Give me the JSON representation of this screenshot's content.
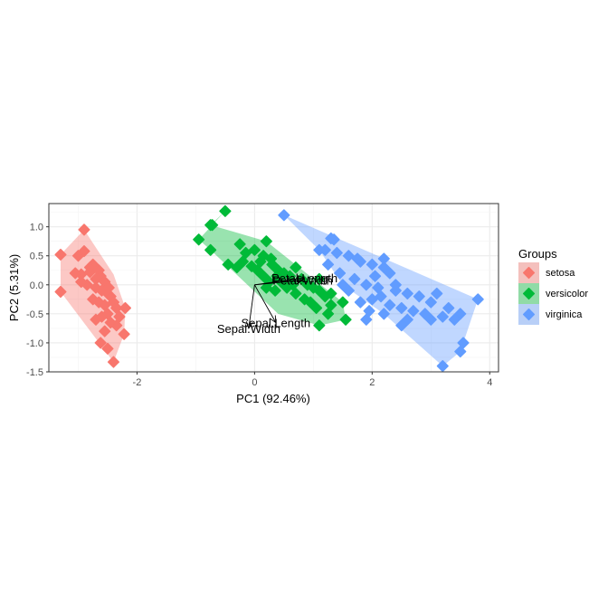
{
  "chart_data": {
    "type": "scatter",
    "title": "",
    "xlabel": "PC1 (92.46%)",
    "ylabel": "PC2 (5.31%)",
    "xlim": [
      -3.5,
      4.15
    ],
    "ylim": [
      -1.5,
      1.4
    ],
    "x_ticks": [
      -2,
      0,
      2,
      4
    ],
    "y_ticks": [
      -1.5,
      -1.0,
      -0.5,
      0.0,
      0.5,
      1.0
    ],
    "x_tick_labels": [
      "-2",
      "0",
      "2",
      "4"
    ],
    "y_tick_labels": [
      "-1.5",
      "-1.0",
      "-0.5",
      "0.0",
      "0.5",
      "1.0"
    ],
    "grid": true,
    "legend": {
      "title": "Groups",
      "position": "right",
      "entries": [
        "setosa",
        "versicolor",
        "virginica"
      ]
    },
    "series": [
      {
        "name": "setosa",
        "color": "#F8766D",
        "hull": [
          [
            -2.9,
            0.95
          ],
          [
            -3.3,
            0.52
          ],
          [
            -3.3,
            -0.12
          ],
          [
            -2.4,
            -1.33
          ],
          [
            -2.22,
            -0.85
          ],
          [
            -2.2,
            -0.4
          ],
          [
            -2.4,
            0.18
          ]
        ],
        "points": [
          [
            -2.9,
            0.95
          ],
          [
            -3.3,
            0.52
          ],
          [
            -3.3,
            -0.12
          ],
          [
            -2.4,
            -1.33
          ],
          [
            -2.22,
            -0.85
          ],
          [
            -2.2,
            -0.4
          ],
          [
            -3.0,
            0.5
          ],
          [
            -2.9,
            0.58
          ],
          [
            -2.75,
            0.35
          ],
          [
            -2.8,
            0.22
          ],
          [
            -2.95,
            0.18
          ],
          [
            -2.7,
            0.1
          ],
          [
            -2.62,
            0.15
          ],
          [
            -2.55,
            0.05
          ],
          [
            -2.85,
            0.0
          ],
          [
            -2.7,
            -0.05
          ],
          [
            -2.6,
            -0.1
          ],
          [
            -2.5,
            -0.15
          ],
          [
            -2.45,
            -0.2
          ],
          [
            -2.75,
            -0.25
          ],
          [
            -2.65,
            -0.3
          ],
          [
            -2.55,
            -0.35
          ],
          [
            -2.4,
            -0.3
          ],
          [
            -2.35,
            -0.4
          ],
          [
            -2.5,
            -0.5
          ],
          [
            -2.6,
            -0.55
          ],
          [
            -2.7,
            -0.6
          ],
          [
            -2.45,
            -0.65
          ],
          [
            -2.35,
            -0.7
          ],
          [
            -2.55,
            -0.8
          ],
          [
            -2.62,
            -1.0
          ],
          [
            -2.5,
            -1.1
          ],
          [
            -2.8,
            0.3
          ],
          [
            -2.95,
            0.05
          ],
          [
            -3.05,
            0.2
          ],
          [
            -2.65,
            0.25
          ],
          [
            -2.48,
            -0.05
          ],
          [
            -2.3,
            -0.55
          ]
        ]
      },
      {
        "name": "versicolor",
        "color": "#00BA38",
        "hull": [
          [
            -0.5,
            1.27
          ],
          [
            -0.95,
            0.78
          ],
          [
            -0.75,
            0.6
          ],
          [
            0.4,
            -0.5
          ],
          [
            1.1,
            -0.7
          ],
          [
            1.55,
            -0.6
          ],
          [
            1.5,
            -0.3
          ],
          [
            0.2,
            0.75
          ],
          [
            -0.75,
            1.03
          ]
        ],
        "points": [
          [
            -0.5,
            1.27
          ],
          [
            -0.95,
            0.78
          ],
          [
            -0.75,
            1.03
          ],
          [
            -0.72,
            1.03
          ],
          [
            -0.75,
            0.6
          ],
          [
            1.1,
            -0.7
          ],
          [
            1.55,
            -0.6
          ],
          [
            1.5,
            -0.3
          ],
          [
            0.2,
            0.75
          ],
          [
            0.15,
            0.5
          ],
          [
            0.1,
            0.4
          ],
          [
            0.3,
            0.35
          ],
          [
            0.4,
            0.25
          ],
          [
            0.5,
            0.2
          ],
          [
            0.6,
            0.15
          ],
          [
            0.7,
            0.3
          ],
          [
            0.8,
            0.1
          ],
          [
            0.9,
            0.0
          ],
          [
            1.0,
            -0.05
          ],
          [
            1.1,
            -0.1
          ],
          [
            1.2,
            -0.2
          ],
          [
            1.3,
            -0.15
          ],
          [
            0.35,
            -0.1
          ],
          [
            0.55,
            -0.05
          ],
          [
            0.7,
            -0.15
          ],
          [
            0.85,
            -0.25
          ],
          [
            0.95,
            -0.3
          ],
          [
            1.05,
            -0.4
          ],
          [
            1.25,
            -0.5
          ],
          [
            0.25,
            0.05
          ],
          [
            0.45,
            0.05
          ],
          [
            0.65,
            0.0
          ],
          [
            -0.2,
            0.4
          ],
          [
            -0.3,
            0.3
          ],
          [
            -0.45,
            0.35
          ],
          [
            -0.15,
            0.55
          ],
          [
            0.05,
            0.25
          ],
          [
            0.15,
            0.15
          ],
          [
            0.0,
            0.6
          ],
          [
            -0.25,
            0.7
          ],
          [
            1.1,
            0.1
          ],
          [
            1.3,
            -0.35
          ],
          [
            -0.05,
            0.32
          ],
          [
            0.28,
            0.45
          ],
          [
            0.38,
            0.15
          ],
          [
            0.2,
            -0.05
          ]
        ]
      },
      {
        "name": "virginica",
        "color": "#619CFF",
        "hull": [
          [
            0.5,
            1.2
          ],
          [
            3.8,
            -0.25
          ],
          [
            3.5,
            -1.15
          ],
          [
            3.2,
            -1.4
          ],
          [
            2.2,
            -0.5
          ],
          [
            1.5,
            0.0
          ],
          [
            1.1,
            0.6
          ]
        ],
        "points": [
          [
            0.5,
            1.2
          ],
          [
            3.8,
            -0.25
          ],
          [
            3.5,
            -1.15
          ],
          [
            3.2,
            -1.4
          ],
          [
            2.2,
            -0.5
          ],
          [
            1.5,
            0.0
          ],
          [
            1.1,
            0.6
          ],
          [
            1.3,
            0.8
          ],
          [
            1.35,
            0.78
          ],
          [
            1.2,
            0.6
          ],
          [
            1.4,
            0.55
          ],
          [
            1.6,
            0.5
          ],
          [
            1.8,
            0.4
          ],
          [
            2.0,
            0.35
          ],
          [
            2.2,
            0.3
          ],
          [
            2.3,
            0.2
          ],
          [
            1.7,
            0.1
          ],
          [
            1.9,
            0.0
          ],
          [
            2.1,
            -0.05
          ],
          [
            2.4,
            -0.1
          ],
          [
            2.6,
            -0.15
          ],
          [
            2.8,
            -0.2
          ],
          [
            3.0,
            -0.3
          ],
          [
            3.3,
            -0.4
          ],
          [
            3.5,
            -0.5
          ],
          [
            3.4,
            -0.6
          ],
          [
            3.2,
            -0.55
          ],
          [
            2.9,
            -0.5
          ],
          [
            2.7,
            -0.45
          ],
          [
            2.5,
            -0.4
          ],
          [
            2.3,
            -0.35
          ],
          [
            2.0,
            -0.25
          ],
          [
            1.8,
            -0.3
          ],
          [
            1.6,
            -0.1
          ],
          [
            1.9,
            -0.6
          ],
          [
            2.5,
            -0.7
          ],
          [
            3.0,
            -0.6
          ],
          [
            3.55,
            -1.0
          ],
          [
            2.2,
            0.45
          ],
          [
            1.75,
            0.45
          ],
          [
            2.05,
            0.15
          ],
          [
            2.4,
            0.0
          ],
          [
            2.15,
            -0.2
          ],
          [
            3.1,
            -0.15
          ],
          [
            1.45,
            0.2
          ],
          [
            2.6,
            -0.6
          ],
          [
            1.95,
            -0.45
          ],
          [
            1.25,
            0.35
          ]
        ]
      }
    ],
    "loadings": [
      {
        "label": "Petal.Length",
        "x": 0.85,
        "y": 0.12
      },
      {
        "label": "Petal.Width",
        "x": 0.82,
        "y": 0.08
      },
      {
        "label": "Sepal.Length",
        "x": 0.36,
        "y": -0.65
      },
      {
        "label": "Sepal.Width",
        "x": -0.1,
        "y": -0.75
      }
    ]
  }
}
